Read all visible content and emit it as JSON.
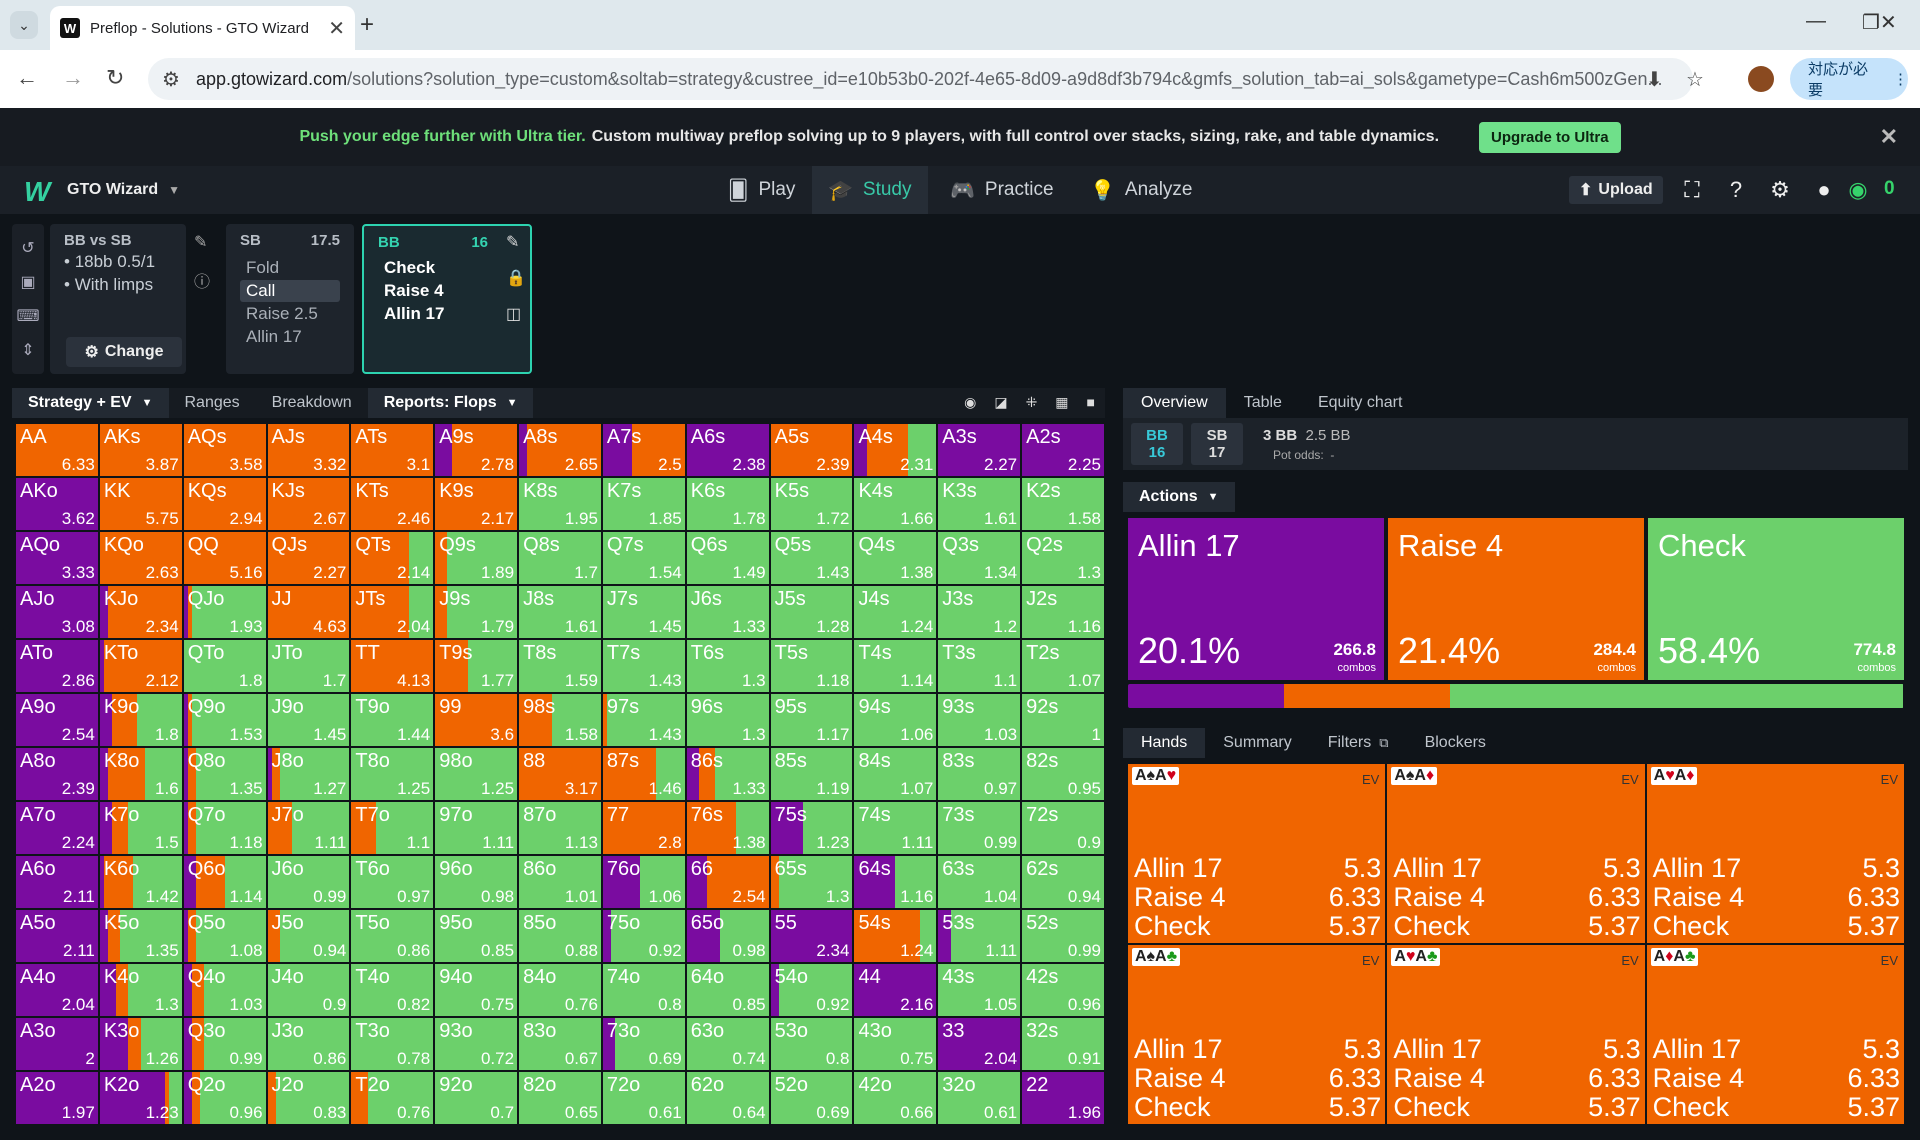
{
  "browser": {
    "tab_title": "Preflop - Solutions - GTO Wizard",
    "url_host": "app.gtowizard.com",
    "url_rest": "/solutions?solution_type=custom&soltab=strategy&custree_id=e10b53b0-202f-4e65-8d09-a9d8df3b794c&gmfs_solution_tab=ai_sols&gametype=Cash6m500zGen...",
    "needs_label": "対応が必要"
  },
  "banner": {
    "highlight": "Push your edge further with Ultra tier.",
    "text": "Custom multiway preflop solving up to 9 players, with full control over stacks, sizing, rake, and table dynamics.",
    "button": "Upgrade to Ultra"
  },
  "nav": {
    "brand": "GTO Wizard",
    "items": [
      "Play",
      "Study",
      "Practice",
      "Analyze"
    ],
    "upload": "Upload",
    "coins": "0"
  },
  "spot": {
    "title": "BB vs SB",
    "line1": "18bb 0.5/1",
    "line2": "With limps",
    "change": "Change"
  },
  "sb": {
    "pos": "SB",
    "stack": "17.5",
    "options": [
      "Fold",
      "Call",
      "Raise 2.5",
      "Allin 17"
    ]
  },
  "bb": {
    "pos": "BB",
    "stack": "16",
    "options": [
      "Check",
      "Raise 4",
      "Allin 17"
    ]
  },
  "subtabs": {
    "strategy": "Strategy + EV",
    "ranges": "Ranges",
    "breakdown": "Breakdown",
    "reports": "Reports: Flops"
  },
  "colors": {
    "allin": "#7a0ca0",
    "raise": "#f06500",
    "check": "#6cd06b"
  },
  "matrix": [
    [
      [
        "AA",
        "6.33",
        0,
        100
      ],
      [
        "AKs",
        "3.87",
        0,
        100
      ],
      [
        "AQs",
        "3.58",
        0,
        100
      ],
      [
        "AJs",
        "3.32",
        0,
        100
      ],
      [
        "ATs",
        "3.1",
        0,
        100
      ],
      [
        "A9s",
        "2.78",
        20,
        80
      ],
      [
        "A8s",
        "2.65",
        10,
        90
      ],
      [
        "A7s",
        "2.5",
        35,
        65
      ],
      [
        "A6s",
        "2.38",
        100,
        0
      ],
      [
        "A5s",
        "2.39",
        0,
        100
      ],
      [
        "A4s",
        "2.31",
        15,
        50
      ],
      [
        "A3s",
        "2.27",
        100,
        0
      ],
      [
        "A2s",
        "2.25",
        100,
        0
      ]
    ],
    [
      [
        "AKo",
        "3.62",
        100,
        0
      ],
      [
        "KK",
        "5.75",
        0,
        100
      ],
      [
        "KQs",
        "2.94",
        0,
        100
      ],
      [
        "KJs",
        "2.67",
        0,
        100
      ],
      [
        "KTs",
        "2.46",
        0,
        100
      ],
      [
        "K9s",
        "2.17",
        0,
        100
      ],
      [
        "K8s",
        "1.95",
        0,
        0
      ],
      [
        "K7s",
        "1.85",
        0,
        0
      ],
      [
        "K6s",
        "1.78",
        0,
        0
      ],
      [
        "K5s",
        "1.72",
        0,
        0
      ],
      [
        "K4s",
        "1.66",
        0,
        0
      ],
      [
        "K3s",
        "1.61",
        0,
        0
      ],
      [
        "K2s",
        "1.58",
        0,
        0
      ]
    ],
    [
      [
        "AQo",
        "3.33",
        100,
        0
      ],
      [
        "KQo",
        "2.63",
        0,
        100
      ],
      [
        "QQ",
        "5.16",
        0,
        100
      ],
      [
        "QJs",
        "2.27",
        0,
        100
      ],
      [
        "QTs",
        "2.14",
        0,
        70
      ],
      [
        "Q9s",
        "1.89",
        0,
        15
      ],
      [
        "Q8s",
        "1.7",
        0,
        0
      ],
      [
        "Q7s",
        "1.54",
        0,
        0
      ],
      [
        "Q6s",
        "1.49",
        0,
        0
      ],
      [
        "Q5s",
        "1.43",
        0,
        0
      ],
      [
        "Q4s",
        "1.38",
        0,
        0
      ],
      [
        "Q3s",
        "1.34",
        0,
        0
      ],
      [
        "Q2s",
        "1.3",
        0,
        0
      ]
    ],
    [
      [
        "AJo",
        "3.08",
        100,
        0
      ],
      [
        "KJo",
        "2.34",
        10,
        90
      ],
      [
        "QJo",
        "1.93",
        5,
        5
      ],
      [
        "JJ",
        "4.63",
        0,
        100
      ],
      [
        "JTs",
        "2.04",
        0,
        70
      ],
      [
        "J9s",
        "1.79",
        0,
        15
      ],
      [
        "J8s",
        "1.61",
        0,
        0
      ],
      [
        "J7s",
        "1.45",
        0,
        0
      ],
      [
        "J6s",
        "1.33",
        0,
        0
      ],
      [
        "J5s",
        "1.28",
        0,
        0
      ],
      [
        "J4s",
        "1.24",
        0,
        0
      ],
      [
        "J3s",
        "1.2",
        0,
        0
      ],
      [
        "J2s",
        "1.16",
        0,
        0
      ]
    ],
    [
      [
        "ATo",
        "2.86",
        100,
        0
      ],
      [
        "KTo",
        "2.12",
        5,
        95
      ],
      [
        "QTo",
        "1.8",
        0,
        0
      ],
      [
        "JTo",
        "1.7",
        0,
        0
      ],
      [
        "TT",
        "4.13",
        0,
        100
      ],
      [
        "T9s",
        "1.77",
        0,
        40
      ],
      [
        "T8s",
        "1.59",
        0,
        0
      ],
      [
        "T7s",
        "1.43",
        0,
        0
      ],
      [
        "T6s",
        "1.3",
        0,
        0
      ],
      [
        "T5s",
        "1.18",
        0,
        0
      ],
      [
        "T4s",
        "1.14",
        0,
        0
      ],
      [
        "T3s",
        "1.1",
        0,
        0
      ],
      [
        "T2s",
        "1.07",
        0,
        0
      ]
    ],
    [
      [
        "A9o",
        "2.54",
        100,
        0
      ],
      [
        "K9o",
        "1.8",
        15,
        30
      ],
      [
        "Q9o",
        "1.53",
        5,
        5
      ],
      [
        "J9o",
        "1.45",
        0,
        0
      ],
      [
        "T9o",
        "1.44",
        0,
        0
      ],
      [
        "99",
        "3.6",
        0,
        100
      ],
      [
        "98s",
        "1.58",
        0,
        40
      ],
      [
        "97s",
        "1.43",
        0,
        5
      ],
      [
        "96s",
        "1.3",
        0,
        0
      ],
      [
        "95s",
        "1.17",
        0,
        0
      ],
      [
        "94s",
        "1.06",
        0,
        0
      ],
      [
        "93s",
        "1.03",
        0,
        0
      ],
      [
        "92s",
        "1",
        0,
        0
      ]
    ],
    [
      [
        "A8o",
        "2.39",
        100,
        0
      ],
      [
        "K8o",
        "1.6",
        10,
        45
      ],
      [
        "Q8o",
        "1.35",
        5,
        10
      ],
      [
        "J8o",
        "1.27",
        5,
        10
      ],
      [
        "T8o",
        "1.25",
        0,
        0
      ],
      [
        "98o",
        "1.25",
        0,
        0
      ],
      [
        "88",
        "3.17",
        0,
        100
      ],
      [
        "87s",
        "1.46",
        0,
        65
      ],
      [
        "86s",
        "1.33",
        15,
        20
      ],
      [
        "85s",
        "1.19",
        0,
        0
      ],
      [
        "84s",
        "1.07",
        0,
        0
      ],
      [
        "83s",
        "0.97",
        0,
        0
      ],
      [
        "82s",
        "0.95",
        0,
        0
      ]
    ],
    [
      [
        "A7o",
        "2.24",
        100,
        0
      ],
      [
        "K7o",
        "1.5",
        15,
        20
      ],
      [
        "Q7o",
        "1.18",
        5,
        10
      ],
      [
        "J7o",
        "1.11",
        0,
        30
      ],
      [
        "T7o",
        "1.1",
        0,
        30
      ],
      [
        "97o",
        "1.11",
        0,
        0
      ],
      [
        "87o",
        "1.13",
        0,
        0
      ],
      [
        "77",
        "2.8",
        0,
        100
      ],
      [
        "76s",
        "1.38",
        0,
        60
      ],
      [
        "75s",
        "1.23",
        40,
        0
      ],
      [
        "74s",
        "1.11",
        0,
        0
      ],
      [
        "73s",
        "0.99",
        0,
        0
      ],
      [
        "72s",
        "0.9",
        0,
        0
      ]
    ],
    [
      [
        "A6o",
        "2.11",
        100,
        0
      ],
      [
        "K6o",
        "1.42",
        5,
        35
      ],
      [
        "Q6o",
        "1.14",
        15,
        35
      ],
      [
        "J6o",
        "0.99",
        0,
        0
      ],
      [
        "T6o",
        "0.97",
        0,
        0
      ],
      [
        "96o",
        "0.98",
        0,
        0
      ],
      [
        "86o",
        "1.01",
        0,
        0
      ],
      [
        "76o",
        "1.06",
        45,
        0
      ],
      [
        "66",
        "2.54",
        25,
        75
      ],
      [
        "65s",
        "1.3",
        0,
        10
      ],
      [
        "64s",
        "1.16",
        50,
        0
      ],
      [
        "63s",
        "1.04",
        0,
        0
      ],
      [
        "62s",
        "0.94",
        0,
        0
      ]
    ],
    [
      [
        "A5o",
        "2.11",
        100,
        0
      ],
      [
        "K5o",
        "1.35",
        10,
        15
      ],
      [
        "Q5o",
        "1.08",
        5,
        10
      ],
      [
        "J5o",
        "0.94",
        0,
        15
      ],
      [
        "T5o",
        "0.86",
        0,
        0
      ],
      [
        "95o",
        "0.85",
        0,
        0
      ],
      [
        "85o",
        "0.88",
        0,
        0
      ],
      [
        "75o",
        "0.92",
        10,
        0
      ],
      [
        "65o",
        "0.98",
        40,
        0
      ],
      [
        "55",
        "2.34",
        100,
        0
      ],
      [
        "54s",
        "1.24",
        0,
        80
      ],
      [
        "53s",
        "1.11",
        15,
        0
      ],
      [
        "52s",
        "0.99",
        0,
        0
      ]
    ],
    [
      [
        "A4o",
        "2.04",
        100,
        0
      ],
      [
        "K4o",
        "1.3",
        20,
        15
      ],
      [
        "Q4o",
        "1.03",
        10,
        15
      ],
      [
        "J4o",
        "0.9",
        0,
        0
      ],
      [
        "T4o",
        "0.82",
        0,
        0
      ],
      [
        "94o",
        "0.75",
        0,
        0
      ],
      [
        "84o",
        "0.76",
        0,
        0
      ],
      [
        "74o",
        "0.8",
        0,
        0
      ],
      [
        "64o",
        "0.85",
        0,
        0
      ],
      [
        "54o",
        "0.92",
        10,
        0
      ],
      [
        "44",
        "2.16",
        100,
        0
      ],
      [
        "43s",
        "1.05",
        0,
        0
      ],
      [
        "42s",
        "0.96",
        0,
        0
      ]
    ],
    [
      [
        "A3o",
        "2",
        100,
        0
      ],
      [
        "K3o",
        "1.26",
        35,
        15
      ],
      [
        "Q3o",
        "0.99",
        10,
        15
      ],
      [
        "J3o",
        "0.86",
        0,
        0
      ],
      [
        "T3o",
        "0.78",
        0,
        0
      ],
      [
        "93o",
        "0.72",
        0,
        0
      ],
      [
        "83o",
        "0.67",
        0,
        0
      ],
      [
        "73o",
        "0.69",
        15,
        0
      ],
      [
        "63o",
        "0.74",
        0,
        0
      ],
      [
        "53o",
        "0.8",
        0,
        0
      ],
      [
        "43o",
        "0.75",
        0,
        0
      ],
      [
        "33",
        "2.04",
        100,
        0
      ],
      [
        "32s",
        "0.91",
        0,
        0
      ]
    ],
    [
      [
        "A2o",
        "1.97",
        100,
        0
      ],
      [
        "K2o",
        "1.23",
        80,
        5
      ],
      [
        "Q2o",
        "0.96",
        10,
        10
      ],
      [
        "J2o",
        "0.83",
        0,
        10
      ],
      [
        "T2o",
        "0.76",
        0,
        20
      ],
      [
        "92o",
        "0.7",
        0,
        0
      ],
      [
        "82o",
        "0.65",
        0,
        0
      ],
      [
        "72o",
        "0.61",
        0,
        0
      ],
      [
        "62o",
        "0.64",
        0,
        0
      ],
      [
        "52o",
        "0.69",
        0,
        0
      ],
      [
        "42o",
        "0.66",
        0,
        0
      ],
      [
        "32o",
        "0.61",
        0,
        0
      ],
      [
        "22",
        "1.96",
        100,
        0
      ]
    ]
  ],
  "overview": {
    "tabs": [
      "Overview",
      "Table",
      "Equity chart"
    ],
    "bb": "BB",
    "bb_stack": "16",
    "sb": "SB",
    "sb_stack": "17",
    "pot": "3 BB",
    "bet": "2.5 BB",
    "odds_label": "Pot odds:",
    "odds_val": "-"
  },
  "actions_label": "Actions",
  "actions": [
    {
      "name": "Allin 17",
      "pct": "20.1%",
      "combos": "266.8",
      "unit": "combos",
      "freq": 20.1
    },
    {
      "name": "Raise 4",
      "pct": "21.4%",
      "combos": "284.4",
      "unit": "combos",
      "freq": 21.4
    },
    {
      "name": "Check",
      "pct": "58.4%",
      "combos": "774.8",
      "unit": "combos",
      "freq": 58.4
    }
  ],
  "hand_tabs": [
    "Hands",
    "Summary",
    "Filters",
    "Blockers"
  ],
  "hands": [
    {
      "cards": "A♠A♥",
      "ev": "EV",
      "rows": [
        [
          "Allin 17",
          "5.3"
        ],
        [
          "Raise 4",
          "6.33"
        ],
        [
          "Check",
          "5.37"
        ]
      ]
    },
    {
      "cards": "A♠A♦",
      "ev": "EV",
      "rows": [
        [
          "Allin 17",
          "5.3"
        ],
        [
          "Raise 4",
          "6.33"
        ],
        [
          "Check",
          "5.37"
        ]
      ]
    },
    {
      "cards": "A♥A♦",
      "ev": "EV",
      "rows": [
        [
          "Allin 17",
          "5.3"
        ],
        [
          "Raise 4",
          "6.33"
        ],
        [
          "Check",
          "5.37"
        ]
      ]
    },
    {
      "cards": "A♠A♣",
      "ev": "EV",
      "rows": [
        [
          "Allin 17",
          "5.3"
        ],
        [
          "Raise 4",
          "6.33"
        ],
        [
          "Check",
          "5.37"
        ]
      ]
    },
    {
      "cards": "A♥A♣",
      "ev": "EV",
      "rows": [
        [
          "Allin 17",
          "5.3"
        ],
        [
          "Raise 4",
          "6.33"
        ],
        [
          "Check",
          "5.37"
        ]
      ]
    },
    {
      "cards": "A♦A♣",
      "ev": "EV",
      "rows": [
        [
          "Allin 17",
          "5.3"
        ],
        [
          "Raise 4",
          "6.33"
        ],
        [
          "Check",
          "5.37"
        ]
      ]
    }
  ]
}
